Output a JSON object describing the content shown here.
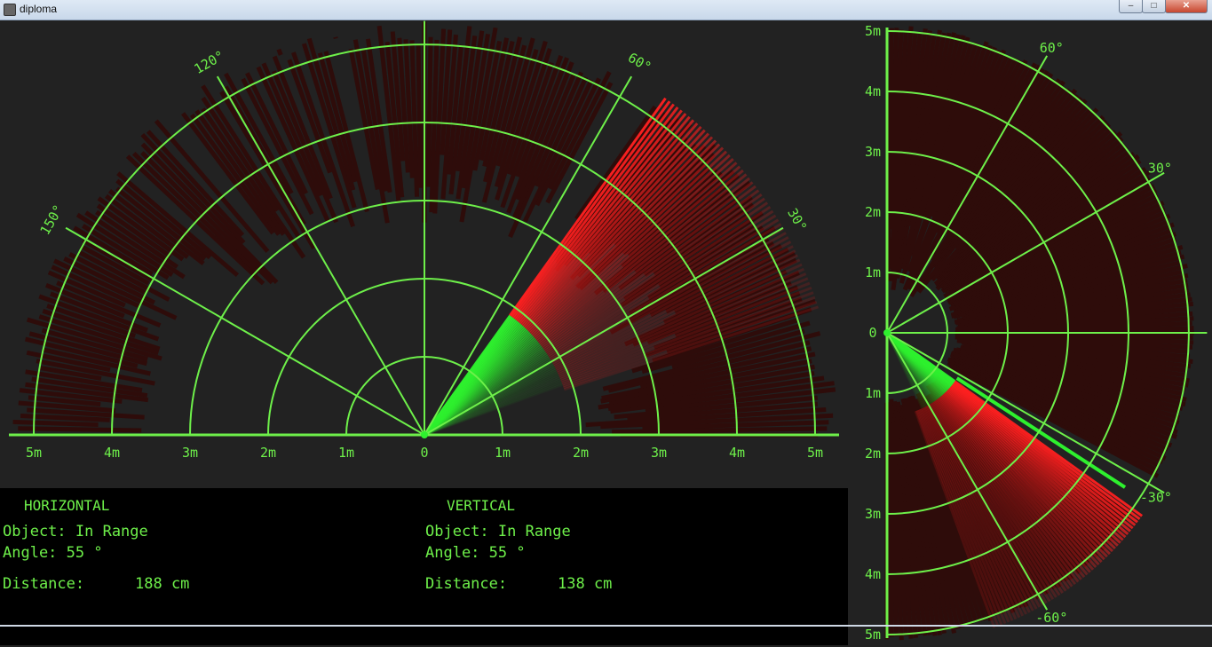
{
  "window": {
    "title": "diploma",
    "buttons": {
      "minimize": "–",
      "maximize": "□",
      "close": "✕"
    }
  },
  "icons": {
    "app": "app-icon"
  },
  "colors": {
    "grid": "#6ef04a",
    "sweep": "#2ef02e",
    "target": "#ff2020",
    "echo": "#2e0c0a",
    "background": "#222222",
    "panel": "#000000"
  },
  "horizontal": {
    "heading": "HORIZONTAL",
    "object": "Object: In Range",
    "angle": "Angle: 55 °",
    "distance_label": "Distance:",
    "distance_value": "188 cm",
    "radar": {
      "range_labels": [
        "5m",
        "4m",
        "3m",
        "2m",
        "1m",
        "0",
        "1m",
        "2m",
        "3m",
        "4m",
        "5m"
      ],
      "angle_labels": [
        {
          "deg": 30,
          "text": "30°"
        },
        {
          "deg": 60,
          "text": "60°"
        },
        {
          "deg": 120,
          "text": "120°"
        },
        {
          "deg": 150,
          "text": "150°"
        }
      ],
      "sweep_angle_deg": 55,
      "target_distance_cm": 188
    }
  },
  "vertical": {
    "heading": "VERTICAL",
    "object": "Object: In Range",
    "angle": "Angle: 55 °",
    "distance_label": "Distance:",
    "distance_value": "138 cm",
    "radar": {
      "range_labels": [
        "5m",
        "4m",
        "3m",
        "2m",
        "1m",
        "0",
        "1m",
        "2m",
        "3m",
        "4m",
        "5m"
      ],
      "angle_labels": [
        {
          "deg": 60,
          "text": "60°"
        },
        {
          "deg": 30,
          "text": "30°"
        },
        {
          "deg": -30,
          "text": "-30°"
        },
        {
          "deg": -60,
          "text": "-60°"
        }
      ],
      "sweep_angle_deg": -35,
      "target_distance_cm": 138
    }
  }
}
